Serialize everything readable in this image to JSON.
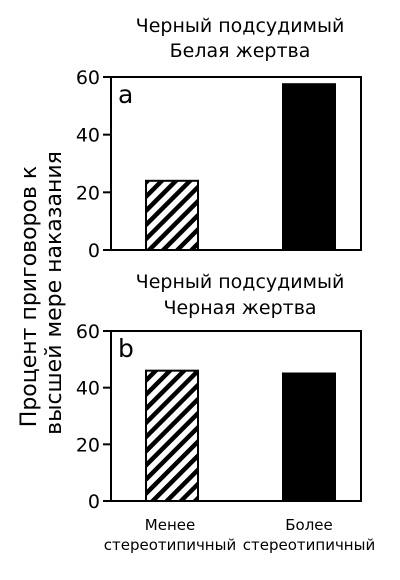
{
  "ylabel_line1": "Процент приговоров к",
  "ylabel_line2": "высшей мере наказания",
  "x_categories": [
    [
      "Менее",
      "стереотипичный"
    ],
    [
      "Более",
      "стереотипичный"
    ]
  ],
  "chart_data": [
    {
      "type": "bar",
      "panel_label": "a",
      "title_lines": [
        "Черный подсудимый",
        "Белая жертва"
      ],
      "categories": [
        "Менее стереотипичный",
        "Более стереотипичный"
      ],
      "values": [
        24,
        57.5
      ],
      "bar_fills": [
        "hatched",
        "#000000"
      ],
      "yticks": [
        0,
        20,
        40,
        60
      ],
      "ylim": [
        0,
        60
      ],
      "grid": false
    },
    {
      "type": "bar",
      "panel_label": "b",
      "title_lines": [
        "Черный подсудимый",
        "Черная жертва"
      ],
      "categories": [
        "Менее стереотипичный",
        "Более стереотипичный"
      ],
      "values": [
        46,
        45
      ],
      "bar_fills": [
        "hatched",
        "#000000"
      ],
      "yticks": [
        0,
        20,
        40,
        60
      ],
      "ylim": [
        0,
        60
      ],
      "grid": false
    }
  ]
}
